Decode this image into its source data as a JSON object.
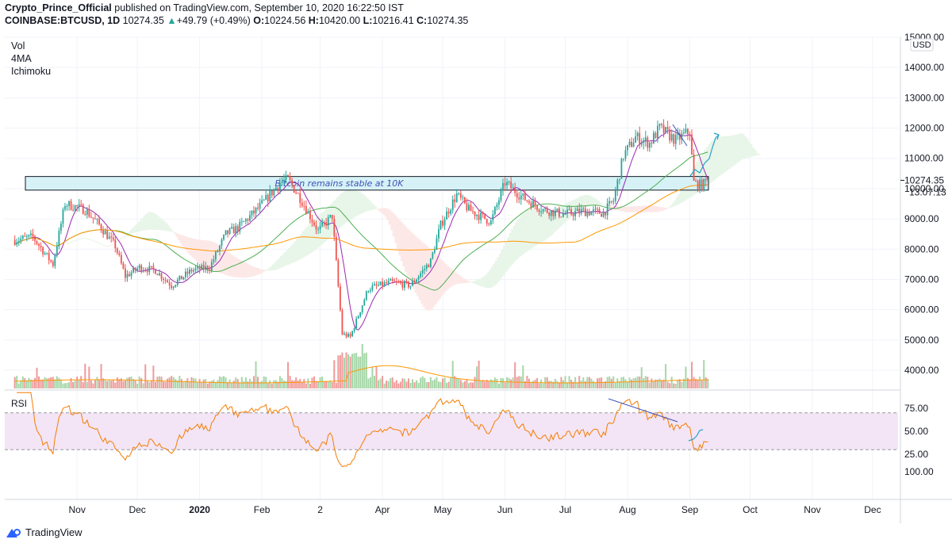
{
  "header": {
    "author": "Crypto_Prince_Official",
    "published": "published on TradingView.com, September 10, 2020 16:22:50 IST",
    "symbol": "COINBASE:BTCUSD, 1D",
    "last": "10274.35",
    "change_arrow": "▲",
    "change": "+49.79 (+0.49%)",
    "o_label": "O:",
    "o_value": "10224.56",
    "h_label": "H:",
    "h_value": "10420.00",
    "l_label": "L:",
    "l_value": "10216.41",
    "c_label": "C:",
    "c_value": "10274.35"
  },
  "legend": [
    "Vol",
    "4MA",
    "Ichimoku"
  ],
  "annotation": "Bitcoin remains stable at 10K",
  "price_axis": {
    "currency": "USD",
    "last_price": "10274.35",
    "countdown": "13:07:13",
    "ticks": [
      "15000.00",
      "14000.00",
      "13000.00",
      "12000.00",
      "11000.00",
      "10000.00",
      "9000.00",
      "8000.00",
      "7000.00",
      "6000.00",
      "5000.00",
      "4000.00"
    ]
  },
  "rsi": {
    "label": "RSI",
    "ticks": [
      "75.00",
      "50.00",
      "25.00",
      "100.00"
    ]
  },
  "time_axis": [
    "Nov",
    "Dec",
    "2020",
    "Feb",
    "2",
    "Apr",
    "May",
    "Jun",
    "Jul",
    "Aug",
    "Sep",
    "Oct",
    "Nov",
    "Dec"
  ],
  "footer": {
    "brand": "TradingView"
  },
  "colors": {
    "up": "#26a69a",
    "down": "#ef5350",
    "ma_fast": "#9c27b0",
    "ma_mid": "#4caf50",
    "ma_slow": "#ff9800",
    "rsi_line": "#f57c00",
    "rsi_band": "#f3e5f5",
    "annotation_fill": "#d6f2f7",
    "trend_line": "#3f51b5",
    "projection": "#26a3c9"
  },
  "chart_data": {
    "type": "candlestick",
    "symbol": "COINBASE:BTCUSD",
    "interval": "1D",
    "price_range": [
      3400,
      15000
    ],
    "rsi_range": [
      0,
      100
    ],
    "resistance_zone": [
      9950,
      10400
    ],
    "price_path": [
      [
        "2019-10-01",
        8300
      ],
      [
        "2019-10-10",
        8400
      ],
      [
        "2019-10-20",
        7500
      ],
      [
        "2019-10-26",
        9500
      ],
      [
        "2019-11-05",
        9300
      ],
      [
        "2019-11-12",
        8800
      ],
      [
        "2019-11-20",
        8100
      ],
      [
        "2019-11-25",
        7100
      ],
      [
        "2019-12-02",
        7400
      ],
      [
        "2019-12-10",
        7300
      ],
      [
        "2019-12-18",
        6800
      ],
      [
        "2019-12-28",
        7300
      ],
      [
        "2020-01-06",
        7400
      ],
      [
        "2020-01-14",
        8500
      ],
      [
        "2020-01-20",
        8700
      ],
      [
        "2020-01-31",
        9400
      ],
      [
        "2020-02-10",
        10200
      ],
      [
        "2020-02-14",
        10300
      ],
      [
        "2020-02-20",
        9700
      ],
      [
        "2020-02-29",
        8600
      ],
      [
        "2020-03-07",
        9100
      ],
      [
        "2020-03-12",
        5200
      ],
      [
        "2020-03-16",
        5100
      ],
      [
        "2020-03-25",
        6700
      ],
      [
        "2020-04-05",
        6900
      ],
      [
        "2020-04-15",
        6800
      ],
      [
        "2020-04-25",
        7600
      ],
      [
        "2020-04-30",
        8800
      ],
      [
        "2020-05-08",
        9800
      ],
      [
        "2020-05-14",
        9300
      ],
      [
        "2020-05-25",
        8900
      ],
      [
        "2020-06-01",
        10200
      ],
      [
        "2020-06-10",
        9700
      ],
      [
        "2020-06-20",
        9300
      ],
      [
        "2020-06-30",
        9150
      ],
      [
        "2020-07-10",
        9250
      ],
      [
        "2020-07-20",
        9200
      ],
      [
        "2020-07-25",
        9600
      ],
      [
        "2020-07-30",
        11100
      ],
      [
        "2020-08-05",
        11700
      ],
      [
        "2020-08-12",
        11500
      ],
      [
        "2020-08-17",
        12000
      ],
      [
        "2020-08-25",
        11600
      ],
      [
        "2020-09-01",
        11900
      ],
      [
        "2020-09-03",
        10200
      ],
      [
        "2020-09-07",
        10100
      ],
      [
        "2020-09-10",
        10274.35
      ]
    ]
  },
  "stats": {
    "resistance": "10K"
  }
}
